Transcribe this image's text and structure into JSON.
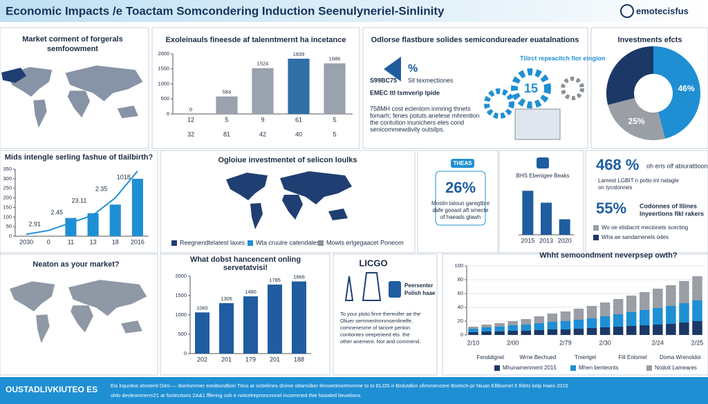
{
  "header": {
    "title": "Economic Impacts /e Toactam Somcondering Induction Seenulyneriel-Sinlinity",
    "logo": "emotecisfus"
  },
  "panels": {
    "map1": {
      "title": [
        "Market corment of forgerals",
        "semfoowment"
      ]
    },
    "semi": {
      "title": "Odlorse flastbure solides semicondureader euatalnations",
      "pct": "%",
      "code": "S99BC75",
      "sub": "Sll texmectiones",
      "emec": "EMEC ttl tsmverip tpide",
      "note": "Tiiirct repeacitch fior eingion",
      "gear": "15",
      "body": [
        "758MH cost eclenlom inmring thnets",
        "fomarh; fenes potuts anelese mhrention",
        "the contution inunichers eles cond",
        "senicommewdivily outsilps."
      ]
    },
    "map2": {
      "title": "Ogloiue investmentet of selicon loulks",
      "legend": [
        "Reegnendtelatest laxes",
        "Wta cruulre catendales",
        "Mowts erlgegaacet Poneom"
      ]
    },
    "stat1": {
      "badge": "THEAS",
      "value": "26%",
      "text": [
        "Mostin taloun garegtbre",
        "dafe gooast aft smecte",
        "of haeads glawh"
      ]
    },
    "stat2": {
      "value1": "468 %",
      "text1": "oh eris olf abiurattioon",
      "note1": [
        "Lamest LGBIT n potio int natagle",
        "on tycolonnes"
      ],
      "value2": "55%",
      "text2": [
        "Codonnes of lliines",
        "lnyeertions fikl rakers"
      ],
      "leg1": "Wo oe etidiacnt mecionets scecting",
      "leg2": "Wha ae sandamenels odes"
    },
    "map3": {
      "title": "Neaton as your market?"
    },
    "licgo": {
      "title": "LICGO",
      "badge": [
        "Peersenter",
        "Polish haae"
      ],
      "body": [
        "To your ploto finre thereuifer ae the",
        "Oliuer semmenlnnnmsenlinelfe,",
        "comnenesme of tariore penlon",
        "contiontes oeeperieed ets. the",
        "other anement. Nor and commend."
      ]
    },
    "footer": {
      "brand": "OUSTADLIVKIUTEO ES",
      "text": [
        "Els lrqurdne ahmeml Ditm — tberlommer eonibondtiori Ttino ar ocbelines dnime oltarmiber tfenoedmertmmme to to ELOS ir-Brdutdlon ofimmencere Borlech-pr Niuan Elltbornet 5 Bitrts kelp Haes 2015",
        "ohlo devleonmerm21 ar foclections 2A&1 fffering coh e notcelreproncnnnel incommed thie fastaled beuelions."
      ]
    }
  },
  "chart_data": [
    {
      "type": "bar",
      "title": "Exoleinauls fineesde af talenntmernt ha incetance",
      "categories": [
        "12",
        "5",
        "9",
        "61",
        "5"
      ],
      "sublabels": [
        "32",
        "81",
        "42",
        "40",
        "5"
      ],
      "values": [
        0,
        584,
        1524,
        1839,
        1686
      ],
      "color": "#2f6fa8",
      "colors": [
        "#2f6fa8",
        "#9aa2ad",
        "#9aa2ad",
        "#2f6fa8",
        "#9aa2ad"
      ],
      "ylim": [
        0,
        2000
      ],
      "yticks": [
        0,
        500,
        1000,
        1500,
        2000
      ]
    },
    {
      "type": "donut",
      "title": "Investments efcts",
      "values": [
        46,
        25,
        29
      ],
      "value_labels": [
        "46%",
        "25%",
        null
      ],
      "colors": [
        "#1f8fd4",
        "#9a9ea5",
        "#1c3866"
      ]
    },
    {
      "type": "combo",
      "title": "Mids intengle serling fashue of tlailbirth?",
      "categories": [
        "2030",
        "0",
        "11",
        "13",
        "18",
        "2016"
      ],
      "series": [
        {
          "type": "bar",
          "color": "#1f8fd4",
          "values": [
            0,
            0,
            95,
            120,
            165,
            300
          ]
        },
        {
          "type": "line",
          "color": "#1f8fd4",
          "values": [
            10,
            30,
            70,
            110,
            200,
            340
          ]
        }
      ],
      "annotations": [
        "2.91",
        "2.45",
        "23.11",
        "2.35",
        "1018"
      ],
      "ylim": [
        0,
        350
      ],
      "yticks": [
        0,
        50,
        100,
        150,
        200,
        250,
        300,
        350
      ]
    },
    {
      "type": "bar",
      "title": "BHS Ebenigee Beaks",
      "categories": [
        "2015",
        "2013",
        "2020"
      ],
      "values": [
        85,
        62,
        30
      ],
      "color": "#1f5da0",
      "ylim": [
        0,
        100
      ]
    },
    {
      "type": "bar",
      "title": [
        "What dobst hancencent onling",
        "servetatvisi!"
      ],
      "categories": [
        "202",
        "201",
        "179",
        "201",
        "188"
      ],
      "values": [
        1065,
        1305,
        1480,
        1785,
        1866
      ],
      "color": "#1f5da0",
      "ylim": [
        0,
        2000
      ],
      "yticks": [
        0,
        500,
        1000,
        1500,
        2000
      ]
    },
    {
      "type": "stacked",
      "title": "Whht semoondment neverpsep owth?",
      "categories": [
        "2/10",
        null,
        null,
        "2/00",
        null,
        null,
        null,
        "2/79",
        null,
        null,
        "2/30",
        null,
        null,
        null,
        "2/24",
        null,
        null,
        "2/25"
      ],
      "groups": [
        "Fenddignel",
        "Wrne Bechued",
        "Tmerlgel",
        "Fill Enlomel",
        "Doma Wrenoldoi"
      ],
      "series": [
        {
          "name": "Mhunamenment 2015",
          "color": "#1c3866",
          "values": [
            4,
            5,
            5,
            6,
            6,
            7,
            8,
            8,
            9,
            10,
            11,
            12,
            13,
            14,
            15,
            16,
            18,
            20
          ]
        },
        {
          "name": "Mhen benteonts",
          "color": "#1f8fd4",
          "values": [
            5,
            6,
            7,
            8,
            9,
            10,
            11,
            12,
            13,
            14,
            16,
            18,
            20,
            22,
            24,
            26,
            28,
            30
          ]
        },
        {
          "name": "Nodoit Lameares",
          "color": "#9a9ea5",
          "values": [
            3,
            4,
            5,
            6,
            8,
            10,
            12,
            14,
            16,
            18,
            20,
            22,
            24,
            26,
            28,
            30,
            32,
            35
          ]
        }
      ],
      "ylim": [
        0,
        100
      ],
      "yticks": [
        0,
        20,
        40,
        60,
        80,
        100
      ]
    }
  ]
}
